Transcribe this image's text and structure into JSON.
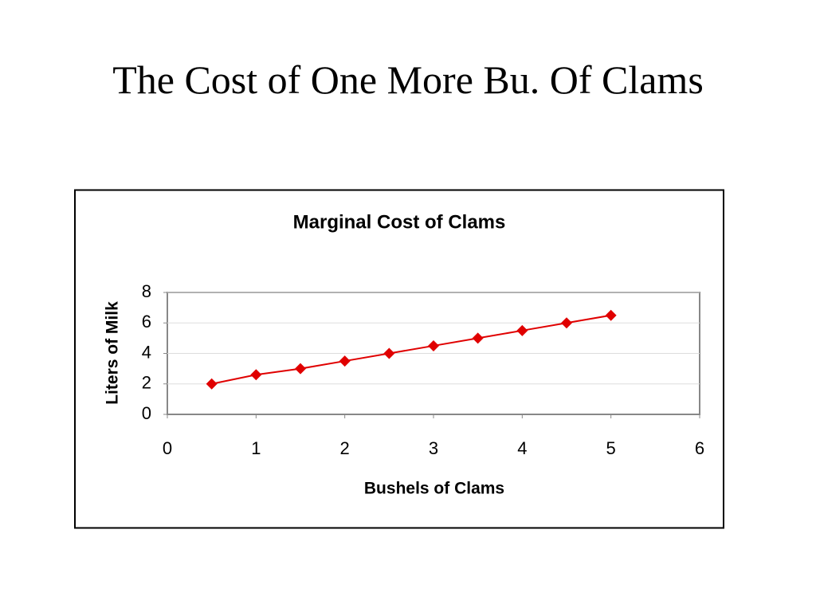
{
  "slide": {
    "title": "The Cost of One More Bu. Of Clams"
  },
  "chart_data": {
    "type": "line",
    "title": "Marginal Cost of Clams",
    "x_label": "Bushels of Clams",
    "y_label": "Liters of Milk",
    "x": [
      0.5,
      1,
      1.5,
      2,
      2.5,
      3,
      3.5,
      4,
      4.5,
      5
    ],
    "series": [
      {
        "color": "#e00000",
        "values": [
          2,
          2.6,
          3,
          3.5,
          4,
          4.5,
          5,
          5.5,
          6,
          6.5
        ]
      }
    ],
    "xlim": [
      0,
      6
    ],
    "xticks": [
      0,
      1,
      2,
      3,
      4,
      5,
      6
    ],
    "ylim": [
      0,
      8
    ],
    "yticks": [
      0,
      2,
      4,
      6,
      8
    ],
    "grid": true
  }
}
